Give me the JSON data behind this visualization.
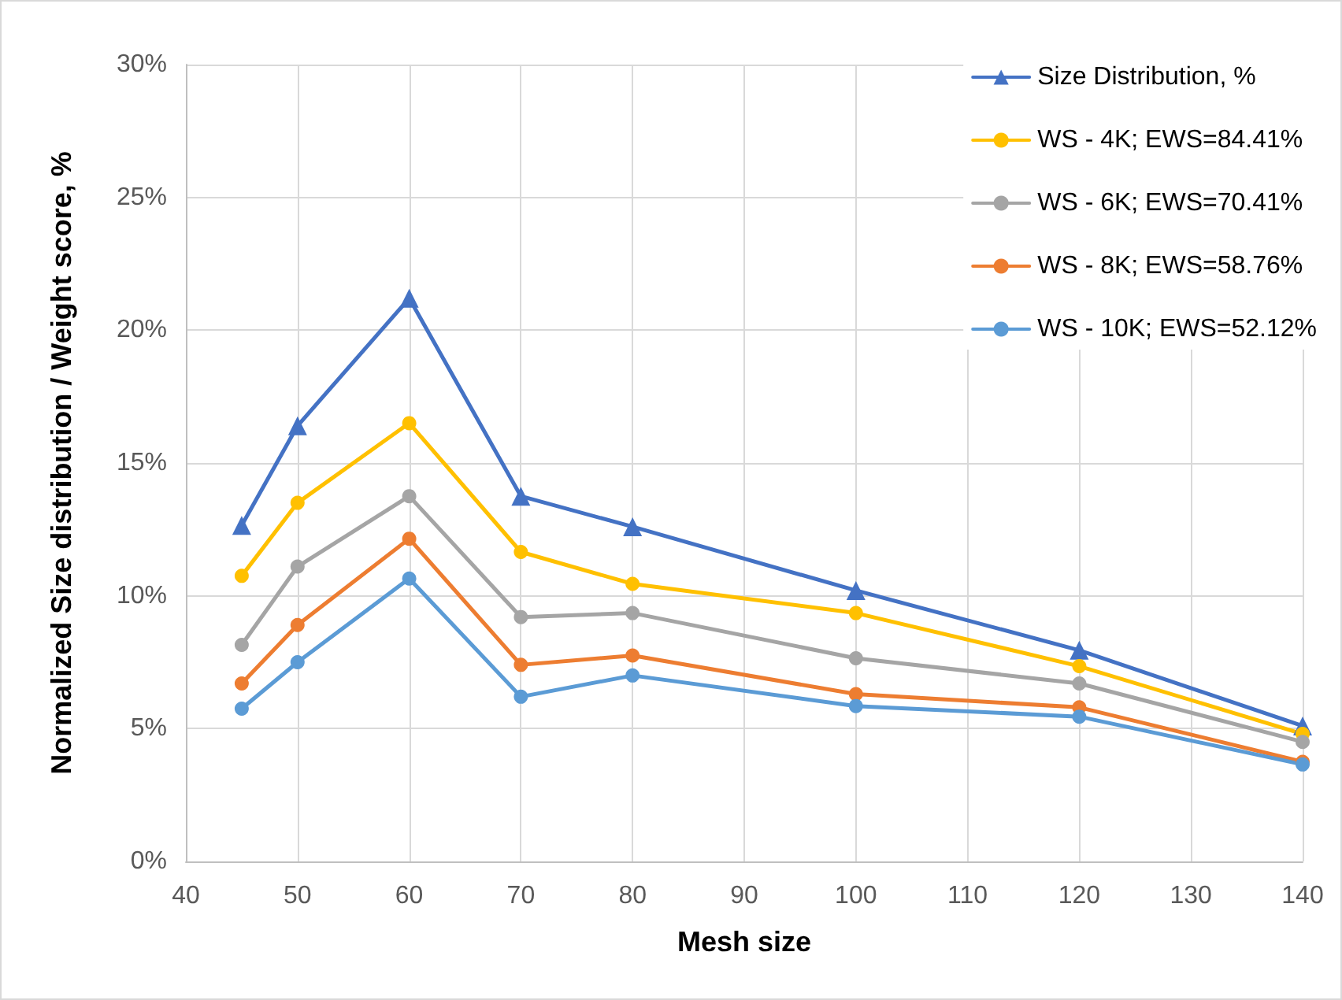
{
  "chart_data": {
    "type": "line",
    "xlabel": "Mesh size",
    "ylabel": "Normalized Size distribution / Weight score, %",
    "x": [
      45,
      50,
      60,
      70,
      80,
      100,
      120,
      140
    ],
    "xlim": [
      40,
      140
    ],
    "xticks": [
      40,
      50,
      60,
      70,
      80,
      90,
      100,
      110,
      120,
      130,
      140
    ],
    "ylim": [
      0,
      30
    ],
    "yticks": [
      {
        "value": 0,
        "label": "0%"
      },
      {
        "value": 5,
        "label": "5%"
      },
      {
        "value": 10,
        "label": "10%"
      },
      {
        "value": 15,
        "label": "15%"
      },
      {
        "value": 20,
        "label": "20%"
      },
      {
        "value": 25,
        "label": "25%"
      },
      {
        "value": 30,
        "label": "30%"
      }
    ],
    "grid": true,
    "legend": "top right",
    "line_style": "solid",
    "series": [
      {
        "name": "Size Distribution, %",
        "color": "#4472c4",
        "marker": "triangle",
        "values": [
          12.65,
          16.4,
          21.2,
          13.75,
          12.6,
          10.2,
          7.95,
          5.1
        ]
      },
      {
        "name": "WS - 4K; EWS=84.41%",
        "color": "#ffc000",
        "marker": "circle",
        "values": [
          10.75,
          13.5,
          16.5,
          11.65,
          10.45,
          9.35,
          7.35,
          4.8
        ]
      },
      {
        "name": "WS - 6K; EWS=70.41%",
        "color": "#a5a5a5",
        "marker": "circle",
        "values": [
          8.15,
          11.1,
          13.75,
          9.2,
          9.35,
          7.65,
          6.7,
          4.5
        ]
      },
      {
        "name": "WS - 8K; EWS=58.76%",
        "color": "#ed7d31",
        "marker": "circle",
        "values": [
          6.7,
          8.9,
          12.15,
          7.4,
          7.75,
          6.3,
          5.8,
          3.75
        ]
      },
      {
        "name": "WS - 10K; EWS=52.12%",
        "color": "#5b9bd5",
        "marker": "circle",
        "values": [
          5.75,
          7.5,
          10.65,
          6.2,
          7.0,
          5.85,
          5.45,
          3.65
        ]
      }
    ]
  }
}
